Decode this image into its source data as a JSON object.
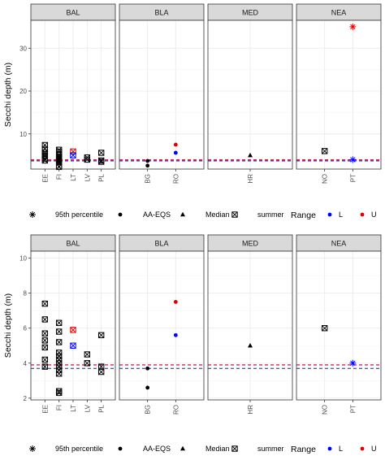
{
  "colors": {
    "L": "#0000ff",
    "U": "#e00000",
    "default": "#000000",
    "ref_L": "#1a1aa6",
    "ref_U": "#b3003b"
  },
  "chart_data": [
    {
      "type": "scatter",
      "ylabel": "Secchi depth (m)",
      "ylim": [
        1.8,
        36.5
      ],
      "yticks": [
        10,
        20,
        30
      ],
      "ref_lines": {
        "L": 3.7,
        "U": 3.95
      },
      "panels": [
        {
          "label": "BAL",
          "categories": [
            "EE",
            "FI",
            "LT",
            "LV",
            "PL"
          ]
        },
        {
          "label": "BLA",
          "categories": [
            "BG",
            "RO"
          ]
        },
        {
          "label": "MED",
          "categories": [
            "HR"
          ]
        },
        {
          "label": "NEA",
          "categories": [
            "NO",
            "PT"
          ]
        }
      ],
      "points": [
        {
          "panel": "BAL",
          "x": "EE",
          "y": 7.4,
          "shape": "summer",
          "range": null
        },
        {
          "panel": "BAL",
          "x": "EE",
          "y": 6.5,
          "shape": "summer",
          "range": null
        },
        {
          "panel": "BAL",
          "x": "EE",
          "y": 5.7,
          "shape": "summer",
          "range": null
        },
        {
          "panel": "BAL",
          "x": "EE",
          "y": 5.3,
          "shape": "summer",
          "range": null
        },
        {
          "panel": "BAL",
          "x": "EE",
          "y": 4.9,
          "shape": "summer",
          "range": null
        },
        {
          "panel": "BAL",
          "x": "EE",
          "y": 4.2,
          "shape": "summer",
          "range": null
        },
        {
          "panel": "BAL",
          "x": "EE",
          "y": 3.8,
          "shape": "summer",
          "range": null
        },
        {
          "panel": "BAL",
          "x": "FI",
          "y": 6.3,
          "shape": "summer",
          "range": null
        },
        {
          "panel": "BAL",
          "x": "FI",
          "y": 5.8,
          "shape": "summer",
          "range": null
        },
        {
          "panel": "BAL",
          "x": "FI",
          "y": 5.2,
          "shape": "summer",
          "range": null
        },
        {
          "panel": "BAL",
          "x": "FI",
          "y": 4.6,
          "shape": "summer",
          "range": null
        },
        {
          "panel": "BAL",
          "x": "FI",
          "y": 4.4,
          "shape": "summer",
          "range": null
        },
        {
          "panel": "BAL",
          "x": "FI",
          "y": 4.2,
          "shape": "summer",
          "range": null
        },
        {
          "panel": "BAL",
          "x": "FI",
          "y": 4.0,
          "shape": "summer",
          "range": null
        },
        {
          "panel": "BAL",
          "x": "FI",
          "y": 3.8,
          "shape": "summer",
          "range": null
        },
        {
          "panel": "BAL",
          "x": "FI",
          "y": 3.6,
          "shape": "summer",
          "range": null
        },
        {
          "panel": "BAL",
          "x": "FI",
          "y": 3.4,
          "shape": "summer",
          "range": null
        },
        {
          "panel": "BAL",
          "x": "FI",
          "y": 2.4,
          "shape": "summer",
          "range": null
        },
        {
          "panel": "BAL",
          "x": "FI",
          "y": 2.3,
          "shape": "summer",
          "range": null
        },
        {
          "panel": "BAL",
          "x": "LT",
          "y": 5.9,
          "shape": "summer",
          "range": "U"
        },
        {
          "panel": "BAL",
          "x": "LT",
          "y": 5.0,
          "shape": "summer",
          "range": "L"
        },
        {
          "panel": "BAL",
          "x": "LV",
          "y": 4.5,
          "shape": "summer",
          "range": null
        },
        {
          "panel": "BAL",
          "x": "LV",
          "y": 4.0,
          "shape": "summer",
          "range": null
        },
        {
          "panel": "BAL",
          "x": "PL",
          "y": 5.6,
          "shape": "summer",
          "range": null
        },
        {
          "panel": "BAL",
          "x": "PL",
          "y": 3.8,
          "shape": "summer",
          "range": null
        },
        {
          "panel": "BAL",
          "x": "PL",
          "y": 3.5,
          "shape": "summer",
          "range": null
        },
        {
          "panel": "BLA",
          "x": "BG",
          "y": 3.7,
          "shape": "aa-eqs",
          "range": null
        },
        {
          "panel": "BLA",
          "x": "BG",
          "y": 2.6,
          "shape": "aa-eqs",
          "range": null
        },
        {
          "panel": "BLA",
          "x": "RO",
          "y": 7.5,
          "shape": "aa-eqs",
          "range": "U"
        },
        {
          "panel": "BLA",
          "x": "RO",
          "y": 5.6,
          "shape": "aa-eqs",
          "range": "L"
        },
        {
          "panel": "MED",
          "x": "HR",
          "y": 5.0,
          "shape": "median",
          "range": null
        },
        {
          "panel": "NEA",
          "x": "NO",
          "y": 6.0,
          "shape": "summer",
          "range": null
        },
        {
          "panel": "NEA",
          "x": "PT",
          "y": 35.0,
          "shape": "p95",
          "range": "U"
        },
        {
          "panel": "NEA",
          "x": "PT",
          "y": 4.0,
          "shape": "p95",
          "range": "L"
        }
      ]
    },
    {
      "type": "scatter",
      "ylabel": "Secchi depth (m)",
      "ylim": [
        1.9,
        10.4
      ],
      "yticks": [
        2,
        4,
        6,
        8,
        10
      ],
      "ref_lines": {
        "L": 3.7,
        "U": 3.9
      },
      "panels": [
        {
          "label": "BAL",
          "categories": [
            "EE",
            "FI",
            "LT",
            "LV",
            "PL"
          ]
        },
        {
          "label": "BLA",
          "categories": [
            "BG",
            "RO"
          ]
        },
        {
          "label": "MED",
          "categories": [
            "HR"
          ]
        },
        {
          "label": "NEA",
          "categories": [
            "NO",
            "PT"
          ]
        }
      ],
      "points": [
        {
          "panel": "BAL",
          "x": "EE",
          "y": 7.4,
          "shape": "summer",
          "range": null
        },
        {
          "panel": "BAL",
          "x": "EE",
          "y": 6.5,
          "shape": "summer",
          "range": null
        },
        {
          "panel": "BAL",
          "x": "EE",
          "y": 5.7,
          "shape": "summer",
          "range": null
        },
        {
          "panel": "BAL",
          "x": "EE",
          "y": 5.3,
          "shape": "summer",
          "range": null
        },
        {
          "panel": "BAL",
          "x": "EE",
          "y": 4.9,
          "shape": "summer",
          "range": null
        },
        {
          "panel": "BAL",
          "x": "EE",
          "y": 4.2,
          "shape": "summer",
          "range": null
        },
        {
          "panel": "BAL",
          "x": "EE",
          "y": 3.8,
          "shape": "summer",
          "range": null
        },
        {
          "panel": "BAL",
          "x": "FI",
          "y": 6.3,
          "shape": "summer",
          "range": null
        },
        {
          "panel": "BAL",
          "x": "FI",
          "y": 5.8,
          "shape": "summer",
          "range": null
        },
        {
          "panel": "BAL",
          "x": "FI",
          "y": 5.2,
          "shape": "summer",
          "range": null
        },
        {
          "panel": "BAL",
          "x": "FI",
          "y": 4.6,
          "shape": "summer",
          "range": null
        },
        {
          "panel": "BAL",
          "x": "FI",
          "y": 4.4,
          "shape": "summer",
          "range": null
        },
        {
          "panel": "BAL",
          "x": "FI",
          "y": 4.2,
          "shape": "summer",
          "range": null
        },
        {
          "panel": "BAL",
          "x": "FI",
          "y": 4.0,
          "shape": "summer",
          "range": null
        },
        {
          "panel": "BAL",
          "x": "FI",
          "y": 3.8,
          "shape": "summer",
          "range": null
        },
        {
          "panel": "BAL",
          "x": "FI",
          "y": 3.6,
          "shape": "summer",
          "range": null
        },
        {
          "panel": "BAL",
          "x": "FI",
          "y": 3.4,
          "shape": "summer",
          "range": null
        },
        {
          "panel": "BAL",
          "x": "FI",
          "y": 2.4,
          "shape": "summer",
          "range": null
        },
        {
          "panel": "BAL",
          "x": "FI",
          "y": 2.3,
          "shape": "summer",
          "range": null
        },
        {
          "panel": "BAL",
          "x": "LT",
          "y": 5.9,
          "shape": "summer",
          "range": "U"
        },
        {
          "panel": "BAL",
          "x": "LT",
          "y": 5.0,
          "shape": "summer",
          "range": "L"
        },
        {
          "panel": "BAL",
          "x": "LV",
          "y": 4.5,
          "shape": "summer",
          "range": null
        },
        {
          "panel": "BAL",
          "x": "LV",
          "y": 4.0,
          "shape": "summer",
          "range": null
        },
        {
          "panel": "BAL",
          "x": "PL",
          "y": 5.6,
          "shape": "summer",
          "range": null
        },
        {
          "panel": "BAL",
          "x": "PL",
          "y": 3.8,
          "shape": "summer",
          "range": null
        },
        {
          "panel": "BAL",
          "x": "PL",
          "y": 3.5,
          "shape": "summer",
          "range": null
        },
        {
          "panel": "BLA",
          "x": "BG",
          "y": 3.7,
          "shape": "aa-eqs",
          "range": null
        },
        {
          "panel": "BLA",
          "x": "BG",
          "y": 2.6,
          "shape": "aa-eqs",
          "range": null
        },
        {
          "panel": "BLA",
          "x": "RO",
          "y": 7.5,
          "shape": "aa-eqs",
          "range": "U"
        },
        {
          "panel": "BLA",
          "x": "RO",
          "y": 5.6,
          "shape": "aa-eqs",
          "range": "L"
        },
        {
          "panel": "MED",
          "x": "HR",
          "y": 5.0,
          "shape": "median",
          "range": null
        },
        {
          "panel": "NEA",
          "x": "NO",
          "y": 6.0,
          "shape": "summer",
          "range": null
        },
        {
          "panel": "NEA",
          "x": "PT",
          "y": 4.0,
          "shape": "p95",
          "range": "L"
        }
      ]
    }
  ],
  "legend": {
    "shapes": [
      {
        "key": "p95",
        "label": "95th percentile"
      },
      {
        "key": "aa-eqs",
        "label": "AA-EQS"
      },
      {
        "key": "median",
        "label": "Median"
      },
      {
        "key": "summer",
        "label": "summer"
      }
    ],
    "range_title": "Range",
    "range_items": [
      {
        "key": "L",
        "label": "L"
      },
      {
        "key": "U",
        "label": "U"
      }
    ]
  }
}
